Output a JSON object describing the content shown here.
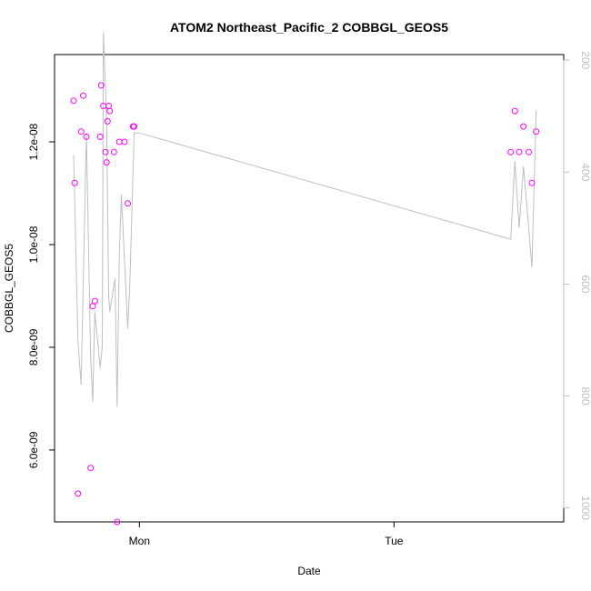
{
  "chart_data": {
    "type": "scatter",
    "title": "ATOM2 Northeast_Pacific_2 COBBGL_GEOS5",
    "xlabel": "Date",
    "ylabel": "COBBGL_GEOS5",
    "x_ticks": [
      {
        "value": 24,
        "label": "Mon"
      },
      {
        "value": 48,
        "label": "Tue"
      }
    ],
    "xlim": [
      16,
      64
    ],
    "y_ticks": [
      {
        "value": 6e-09,
        "label": "6.0e-09"
      },
      {
        "value": 8e-09,
        "label": "8.0e-09"
      },
      {
        "value": 1e-08,
        "label": "1.0e-08"
      },
      {
        "value": 1.2e-08,
        "label": "1.2e-08"
      }
    ],
    "ylim": [
      4.6e-09,
      1.37e-08
    ],
    "y2_ticks": [
      {
        "value": 200,
        "label": "200"
      },
      {
        "value": 400,
        "label": "400"
      },
      {
        "value": 600,
        "label": "600"
      },
      {
        "value": 800,
        "label": "800"
      },
      {
        "value": 1000,
        "label": "1000"
      }
    ],
    "y2lim": [
      1025,
      190
    ],
    "grid": false,
    "colors": {
      "points": "#ff00ff",
      "line": "#bebebe",
      "axis": "#000000",
      "axis2": "#bebebe"
    },
    "series": [
      {
        "kind": "points",
        "color": "#ff00ff",
        "x": [
          17.8,
          17.9,
          18.2,
          18.5,
          18.7,
          19.0,
          19.4,
          19.6,
          19.8,
          20.3,
          20.4,
          20.6,
          20.8,
          20.9,
          21.0,
          21.1,
          21.2,
          21.6,
          21.9,
          22.1,
          22.6,
          22.9,
          23.4,
          23.5,
          59.0,
          59.4,
          59.8,
          60.2,
          60.7,
          61.0,
          61.4
        ],
        "y": [
          1.28e-08,
          1.12e-08,
          5.15e-09,
          1.22e-08,
          1.29e-08,
          1.21e-08,
          5.65e-09,
          8.8e-09,
          8.9e-09,
          1.21e-08,
          1.31e-08,
          1.27e-08,
          1.18e-08,
          1.16e-08,
          1.24e-08,
          1.27e-08,
          1.26e-08,
          1.18e-08,
          4.6e-09,
          1.2e-08,
          1.2e-08,
          1.08e-08,
          1.23e-08,
          1.23e-08,
          1.18e-08,
          1.26e-08,
          1.18e-08,
          1.23e-08,
          1.18e-08,
          1.12e-08,
          1.22e-08
        ]
      },
      {
        "kind": "line",
        "axis": "right",
        "color": "#bebebe",
        "x": [
          17.8,
          18.2,
          18.5,
          19.0,
          19.4,
          19.6,
          19.8,
          20.3,
          20.5,
          20.6,
          20.9,
          21.1,
          21.2,
          21.7,
          21.9,
          22.1,
          22.3,
          22.9,
          23.1,
          23.5,
          24.0,
          59.0,
          59.4,
          59.8,
          60.2,
          60.7,
          61.0,
          61.4
        ],
        "y": [
          370,
          700,
          780,
          330,
          730,
          810,
          650,
          750,
          710,
          150,
          300,
          620,
          650,
          590,
          820,
          550,
          440,
          680,
          600,
          330,
          330,
          520,
          380,
          500,
          390,
          500,
          570,
          290
        ]
      }
    ]
  }
}
